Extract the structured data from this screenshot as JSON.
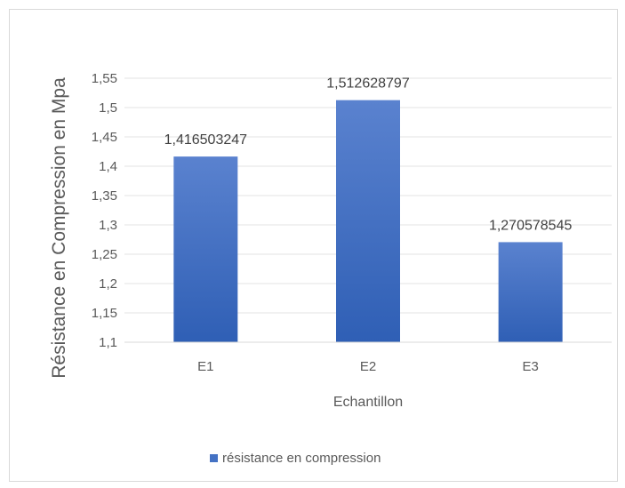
{
  "chart_data": {
    "type": "bar",
    "categories": [
      "E1",
      "E2",
      "E3"
    ],
    "series": [
      {
        "name": "résistance en compression",
        "values": [
          1.416503247,
          1.512628797,
          1.270578545
        ]
      }
    ],
    "data_labels": [
      "1,416503247",
      "1,512628797",
      "1,270578545"
    ],
    "y_ticks": [
      1.1,
      1.15,
      1.2,
      1.25,
      1.3,
      1.35,
      1.4,
      1.45,
      1.5,
      1.55
    ],
    "y_tick_labels": [
      "1,1",
      "1,15",
      "1,2",
      "1,25",
      "1,3",
      "1,35",
      "1,4",
      "1,45",
      "1,5",
      "1,55"
    ],
    "ylim": [
      1.1,
      1.55
    ],
    "xlabel": "Echantillon",
    "ylabel": "Résistance en Compression en Mpa",
    "title": "",
    "grid": true,
    "legend_position": "bottom",
    "bar_color": "#4472c4",
    "bar_color_dark": "#2f5fb3"
  }
}
